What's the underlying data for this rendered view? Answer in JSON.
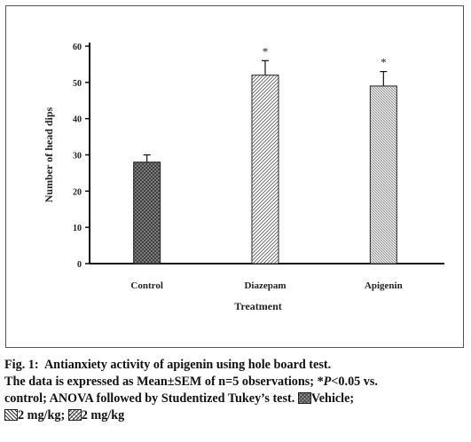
{
  "chart_data": {
    "type": "bar",
    "categories": [
      "Control",
      "Diazepam",
      "Apigenin"
    ],
    "values": [
      28,
      52,
      49
    ],
    "errors": [
      2,
      4,
      4
    ],
    "significance": [
      "",
      "*",
      "*"
    ],
    "xlabel": "Treatment",
    "ylabel": "Number of head dips",
    "ylim": [
      0,
      60
    ],
    "yticks": [
      "0",
      "10",
      "20",
      "30",
      "40",
      "50",
      "60"
    ],
    "grid": false,
    "legend": "caption",
    "patterns": [
      "crosshatch",
      "diagonal",
      "diagonal-dense"
    ],
    "colors": {
      "axis": "#111111",
      "bar_outline": "#222222",
      "vehicle_fill": "#9a9a9a"
    }
  },
  "caption": {
    "fig_label": "Fig. 1:",
    "title": "Antianxiety activity of apigenin using hole board test.",
    "line2_pre": "The data is expressed as Mean±SEM of n=5 observations; *",
    "p_symbol": "P",
    "line2_post": "<0.05 vs.",
    "line3": "control; ANOVA followed by Studentized Tukey’s test.",
    "legend_vehicle": "Vehicle;",
    "legend_diazepam": "2 mg/kg;",
    "legend_apigenin": "2 mg/kg"
  }
}
